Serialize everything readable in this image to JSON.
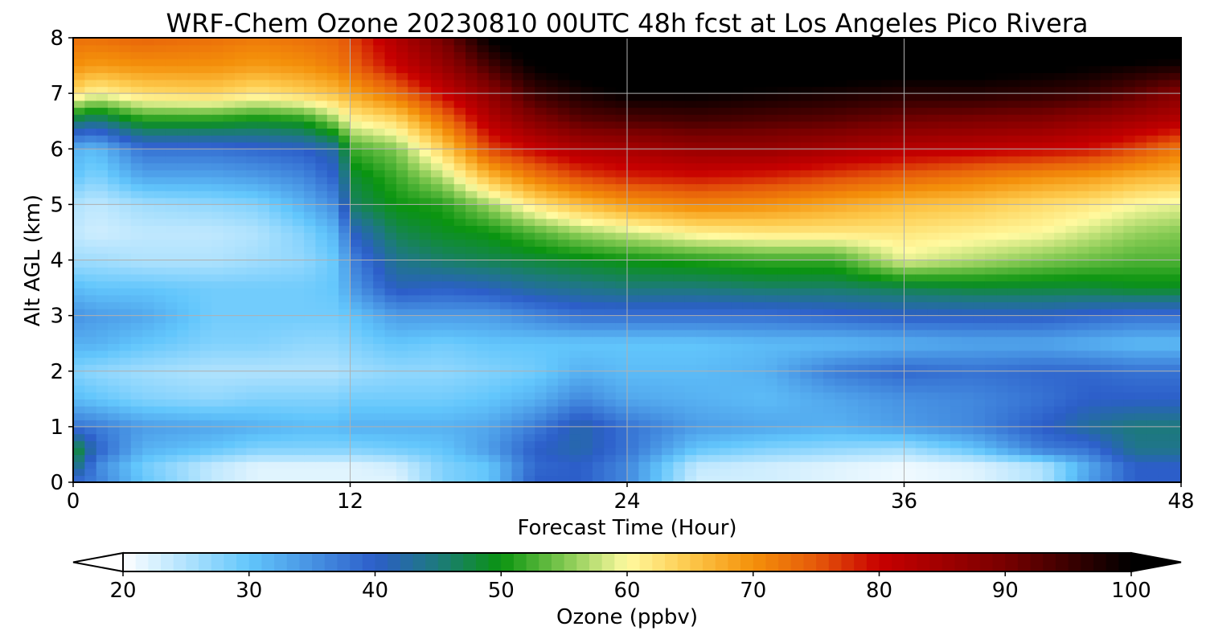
{
  "chart_data": {
    "type": "heatmap",
    "title": "WRF-Chem Ozone  20230810 00UTC 48h fcst at Los Angeles Pico Rivera",
    "xlabel": "Forecast Time (Hour)",
    "ylabel": "Alt AGL (km)",
    "xlim": [
      0,
      48
    ],
    "ylim": [
      0,
      8
    ],
    "x_ticks": [
      "0",
      "12",
      "24",
      "36",
      "48"
    ],
    "y_ticks": [
      "0",
      "1",
      "2",
      "3",
      "4",
      "5",
      "6",
      "7",
      "8"
    ],
    "grid": true,
    "colorbar": {
      "label": "Ozone  (ppbv)",
      "range": [
        20,
        100
      ],
      "extend": "both",
      "ticks": [
        "20",
        "30",
        "40",
        "50",
        "60",
        "70",
        "80",
        "90",
        "100"
      ],
      "colormap_stops": [
        {
          "value": 20,
          "color": "#ffffff"
        },
        {
          "value": 30,
          "color": "#62c6fc"
        },
        {
          "value": 40,
          "color": "#2c5ec9"
        },
        {
          "value": 45,
          "color": "#1d7a7c"
        },
        {
          "value": 50,
          "color": "#0a9410"
        },
        {
          "value": 55,
          "color": "#80c850"
        },
        {
          "value": 60,
          "color": "#fffaa0"
        },
        {
          "value": 65,
          "color": "#fdc84a"
        },
        {
          "value": 70,
          "color": "#f4900a"
        },
        {
          "value": 75,
          "color": "#e65a0a"
        },
        {
          "value": 80,
          "color": "#c80000"
        },
        {
          "value": 90,
          "color": "#780000"
        },
        {
          "value": 100,
          "color": "#000000"
        }
      ]
    },
    "x": [
      0,
      1,
      3,
      6,
      8,
      10,
      11.5,
      12,
      14,
      16,
      18,
      20,
      22,
      24,
      27,
      30,
      33,
      36,
      39,
      42,
      44,
      46,
      48
    ],
    "y": [
      0,
      0.3,
      0.6,
      1,
      1.5,
      2,
      2.5,
      3,
      3.5,
      4,
      4.5,
      5,
      5.5,
      6,
      6.5,
      7,
      7.5,
      8
    ],
    "z": [
      [
        38,
        37,
        30,
        24,
        22,
        22,
        22,
        22,
        22,
        28,
        30,
        40,
        40,
        36,
        23,
        23,
        22,
        21,
        22,
        25,
        34,
        40,
        40
      ],
      [
        46,
        36,
        29,
        24,
        22,
        22,
        22,
        22,
        23,
        28,
        30,
        39,
        40,
        36,
        24,
        23,
        22,
        21,
        22,
        25,
        33,
        40,
        40
      ],
      [
        50,
        40,
        32,
        30,
        28,
        28,
        28,
        28,
        29,
        30,
        34,
        40,
        42,
        38,
        30,
        28,
        27,
        26,
        30,
        37,
        38,
        44,
        44
      ],
      [
        38,
        37,
        34,
        33,
        32,
        31,
        31,
        32,
        32,
        32,
        33,
        37,
        42,
        38,
        34,
        33,
        32,
        34,
        36,
        40,
        43,
        45,
        45
      ],
      [
        31,
        30,
        28,
        27,
        28,
        28,
        28,
        29,
        29,
        29,
        30,
        32,
        36,
        33,
        32,
        31,
        33,
        35,
        36,
        38,
        40,
        40,
        40
      ],
      [
        28,
        27,
        26,
        25,
        25,
        25,
        25,
        26,
        27,
        27,
        28,
        29,
        32,
        31,
        31,
        32,
        37,
        39,
        38,
        39,
        39,
        38,
        38
      ],
      [
        32,
        32,
        30,
        28,
        28,
        27,
        27,
        28,
        30,
        29,
        30,
        30,
        30,
        30,
        30,
        31,
        31,
        32,
        33,
        33,
        32,
        31,
        31
      ],
      [
        35,
        34,
        33,
        29,
        29,
        29,
        29,
        30,
        34,
        34,
        34,
        36,
        38,
        38,
        38,
        38,
        39,
        40,
        40,
        40,
        39,
        38,
        38
      ],
      [
        31,
        30,
        30,
        29,
        29,
        29,
        30,
        34,
        41,
        40,
        41,
        43,
        44,
        45,
        45,
        46,
        46,
        47,
        48,
        48,
        48,
        49,
        49
      ],
      [
        26,
        26,
        25,
        25,
        26,
        27,
        30,
        36,
        44,
        46,
        47,
        48,
        49,
        50,
        51,
        52,
        52,
        59,
        57,
        55,
        54,
        53,
        53
      ],
      [
        24,
        23,
        24,
        24,
        25,
        28,
        32,
        40,
        47,
        49,
        50,
        53,
        56,
        58,
        61,
        62,
        62,
        62,
        61,
        60,
        58,
        56,
        55
      ],
      [
        25,
        24,
        26,
        27,
        28,
        32,
        36,
        46,
        50,
        51,
        56,
        62,
        66,
        69,
        71,
        70,
        68,
        66,
        65,
        63,
        62,
        60,
        59
      ],
      [
        30,
        28,
        33,
        33,
        34,
        36,
        40,
        48,
        52,
        57,
        66,
        72,
        76,
        78,
        79,
        78,
        76,
        74,
        72,
        70,
        69,
        67,
        66
      ],
      [
        32,
        31,
        38,
        38,
        39,
        40,
        43,
        52,
        55,
        64,
        76,
        80,
        83,
        84,
        86,
        86,
        84,
        82,
        81,
        80,
        79,
        76,
        72
      ],
      [
        46,
        44,
        50,
        50,
        49,
        50,
        56,
        60,
        63,
        72,
        82,
        88,
        92,
        93,
        94,
        93,
        92,
        90,
        89,
        88,
        86,
        84,
        82
      ],
      [
        63,
        60,
        63,
        64,
        62,
        64,
        66,
        68,
        73,
        80,
        87,
        95,
        98,
        100,
        100,
        99,
        98,
        97,
        97,
        96,
        95,
        92,
        88
      ],
      [
        70,
        69,
        70,
        70,
        69,
        70,
        72,
        74,
        80,
        86,
        94,
        100,
        102,
        104,
        104,
        104,
        103,
        102,
        102,
        101,
        100,
        99,
        98
      ],
      [
        73,
        73,
        74,
        73,
        72,
        73,
        74,
        76,
        83,
        90,
        100,
        104,
        106,
        106,
        106,
        106,
        106,
        106,
        106,
        106,
        106,
        106,
        106
      ]
    ]
  }
}
